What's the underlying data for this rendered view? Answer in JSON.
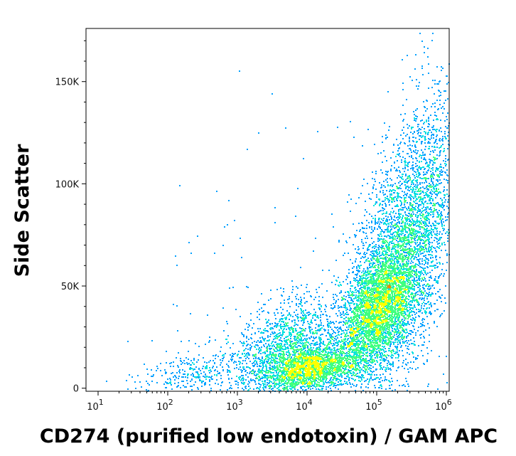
{
  "chart_data": {
    "type": "scatter",
    "subtype": "flow-cytometry density dot plot",
    "xlabel": "CD274 (purified low endotoxin) / GAM APC",
    "ylabel": "Side Scatter",
    "x_scale": "log",
    "xlim": [
      5,
      120000
    ],
    "ylim": [
      -1500,
      176000
    ],
    "x_ticks": [
      {
        "value": 10,
        "base": "10",
        "exp": "1"
      },
      {
        "value": 100,
        "base": "10",
        "exp": "2"
      },
      {
        "value": 1000,
        "base": "10",
        "exp": "3"
      },
      {
        "value": 10000,
        "base": "10",
        "exp": "4"
      },
      {
        "value": 100000,
        "base": "10",
        "exp": "5"
      },
      {
        "value": 1000000,
        "base": "10",
        "exp": "6"
      }
    ],
    "y_ticks": [
      {
        "value": 0,
        "label": "0"
      },
      {
        "value": 50000,
        "label": "50K"
      },
      {
        "value": 100000,
        "label": "100K"
      },
      {
        "value": 150000,
        "label": "150K"
      }
    ],
    "grid": false,
    "legend": "none",
    "density_colors": [
      "#0000ff",
      "#00a0ff",
      "#00e0e0",
      "#40ff80",
      "#ffff00",
      "#ff8000",
      "#ff0000"
    ],
    "populations": [
      {
        "x_center": 12000,
        "y_center": 10000,
        "count": 2000
      },
      {
        "x_center": 100000,
        "y_center": 38000,
        "count": 3400
      },
      {
        "x_center": 5000,
        "y_center": 18000,
        "count": 1600
      },
      {
        "x_center": 200000,
        "y_center": 65000,
        "count": 2600
      },
      {
        "x_center": 500000,
        "y_center": 90000,
        "count": 1200
      },
      {
        "x_center": 300,
        "y_center": 8000,
        "count": 350
      }
    ]
  }
}
